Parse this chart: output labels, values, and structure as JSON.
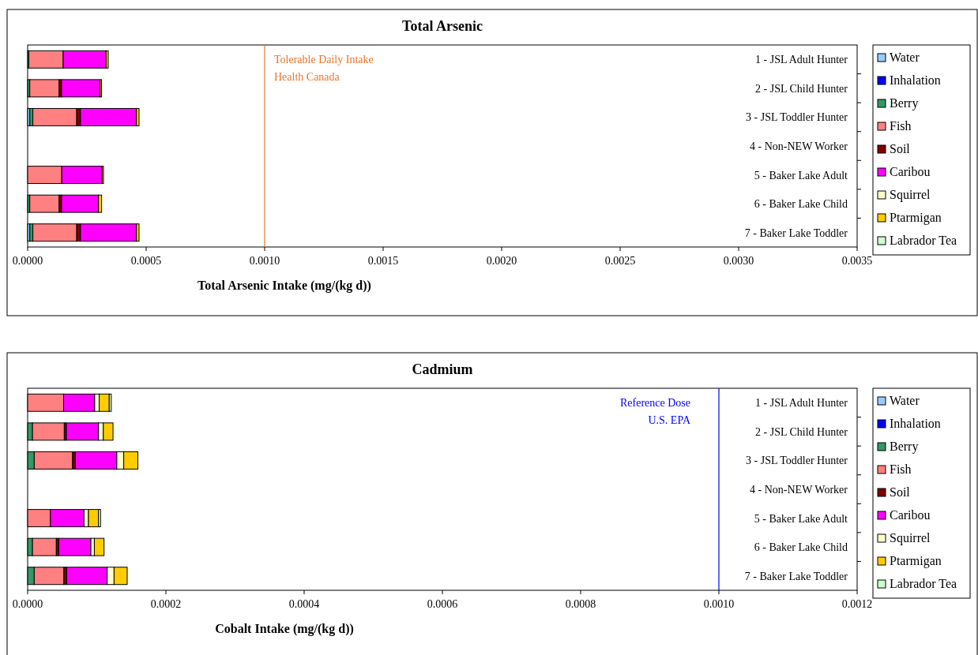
{
  "chart_data": [
    {
      "type": "bar",
      "orientation": "horizontal",
      "stacked": true,
      "title": "Total Arsenic",
      "xlabel": "Total Arsenic Intake (mg/(kg d))",
      "categories": [
        "1 - JSL Adult Hunter",
        "2 - JSL Child Hunter",
        "3 - JSL Toddler Hunter",
        "4 - Non-NEW Worker",
        "5 - Baker Lake Adult",
        "6 - Baker Lake Child",
        "7 - Baker Lake Toddler"
      ],
      "xlim": [
        0,
        0.0035
      ],
      "xticks": [
        {
          "value": 0,
          "label": "0.0000"
        },
        {
          "value": 0.0005,
          "label": "0.0005"
        },
        {
          "value": 0.001,
          "label": "0.0010"
        },
        {
          "value": 0.0015,
          "label": "0.0015"
        },
        {
          "value": 0.002,
          "label": "0.0020"
        },
        {
          "value": 0.0025,
          "label": "0.0025"
        },
        {
          "value": 0.003,
          "label": "0.0030"
        },
        {
          "value": 0.0035,
          "label": "0.0035"
        }
      ],
      "legend": "right",
      "grid": false,
      "ref_lines": [
        {
          "axis": "x",
          "value": 0.001,
          "label": "Tolerable Daily Intake\nHealth Canada",
          "color": "#e8762b"
        }
      ],
      "series": [
        {
          "name": "Water",
          "color": "#99ccff",
          "values": [
            null,
            null,
            9e-06,
            null,
            null,
            null,
            9e-06
          ]
        },
        {
          "name": "Inhalation",
          "color": "#0000ff",
          "values": [
            null,
            null,
            null,
            null,
            null,
            null,
            null
          ]
        },
        {
          "name": "Berry",
          "color": "#339966",
          "values": [
            5e-06,
            9e-06,
            1.3e-05,
            null,
            null,
            9e-06,
            1.3e-05
          ]
        },
        {
          "name": "Fish",
          "color": "#ff8080",
          "values": [
            0.000145,
            0.000124,
            0.000185,
            null,
            0.000144,
            0.000124,
            0.000185
          ]
        },
        {
          "name": "Soil",
          "color": "#800000",
          "values": [
            null,
            1e-05,
            1.6e-05,
            null,
            null,
            1e-05,
            1.6e-05
          ]
        },
        {
          "name": "Caribou",
          "color": "#ff00ff",
          "values": [
            0.000181,
            0.000163,
            0.000236,
            null,
            0.00017,
            0.000156,
            0.000236
          ]
        },
        {
          "name": "Squirrel",
          "color": "#ffffcc",
          "values": [
            null,
            null,
            null,
            null,
            null,
            null,
            null
          ]
        },
        {
          "name": "Ptarmigan",
          "color": "#ffcc00",
          "values": [
            9e-06,
            6e-06,
            1.1e-05,
            null,
            6e-06,
            1.3e-05,
            1.1e-05
          ]
        },
        {
          "name": "Labrador Tea",
          "color": "#ccffcc",
          "values": [
            null,
            null,
            null,
            null,
            null,
            null,
            null
          ]
        }
      ]
    },
    {
      "type": "bar",
      "orientation": "horizontal",
      "stacked": true,
      "title": "Cadmium",
      "xlabel": "Cobalt Intake (mg/(kg d))",
      "categories": [
        "1 - JSL Adult Hunter",
        "2 - JSL Child Hunter",
        "3 - JSL Toddler Hunter",
        "4 - Non-NEW Worker",
        "5 - Baker Lake Adult",
        "6 - Baker Lake Child",
        "7 - Baker Lake Toddler"
      ],
      "xlim": [
        0,
        0.0012
      ],
      "xticks": [
        {
          "value": 0,
          "label": "0.0000"
        },
        {
          "value": 0.0002,
          "label": "0.0002"
        },
        {
          "value": 0.0004,
          "label": "0.0004"
        },
        {
          "value": 0.0006,
          "label": "0.0006"
        },
        {
          "value": 0.0008,
          "label": "0.0008"
        },
        {
          "value": 0.001,
          "label": "0.0010"
        },
        {
          "value": 0.0012,
          "label": "0.0012"
        }
      ],
      "legend": "right",
      "grid": false,
      "ref_lines": [
        {
          "axis": "x",
          "value": 0.001,
          "label": "Reference Dose\nU.S. EPA",
          "color": "#0000ff"
        }
      ],
      "series": [
        {
          "name": "Water",
          "color": "#99ccff",
          "values": [
            null,
            null,
            null,
            null,
            null,
            null,
            null
          ]
        },
        {
          "name": "Inhalation",
          "color": "#0000ff",
          "values": [
            null,
            null,
            null,
            null,
            null,
            null,
            null
          ]
        },
        {
          "name": "Berry",
          "color": "#339966",
          "values": [
            null,
            7e-06,
            9.5e-06,
            null,
            null,
            7e-06,
            9.5e-06
          ]
        },
        {
          "name": "Fish",
          "color": "#ff8080",
          "values": [
            5.2e-05,
            4.6e-05,
            5.55e-05,
            null,
            3.3e-05,
            3.45e-05,
            4.3e-05
          ]
        },
        {
          "name": "Soil",
          "color": "#800000",
          "values": [
            null,
            3e-06,
            4e-06,
            null,
            null,
            3.5e-06,
            4e-06
          ]
        },
        {
          "name": "Caribou",
          "color": "#ff00ff",
          "values": [
            4.5e-05,
            4.65e-05,
            6e-05,
            null,
            4.85e-05,
            4.65e-05,
            5.85e-05
          ]
        },
        {
          "name": "Squirrel",
          "color": "#ffffcc",
          "values": [
            6.5e-06,
            7e-06,
            1e-05,
            null,
            6.5e-06,
            5e-06,
            1e-05
          ]
        },
        {
          "name": "Ptarmigan",
          "color": "#ffcc00",
          "values": [
            1.45e-05,
            1.4e-05,
            2.05e-05,
            null,
            1.45e-05,
            1.4e-05,
            1.9e-05
          ]
        },
        {
          "name": "Labrador Tea",
          "color": "#ccffcc",
          "values": [
            3e-06,
            null,
            null,
            null,
            3e-06,
            null,
            null
          ]
        }
      ]
    }
  ]
}
